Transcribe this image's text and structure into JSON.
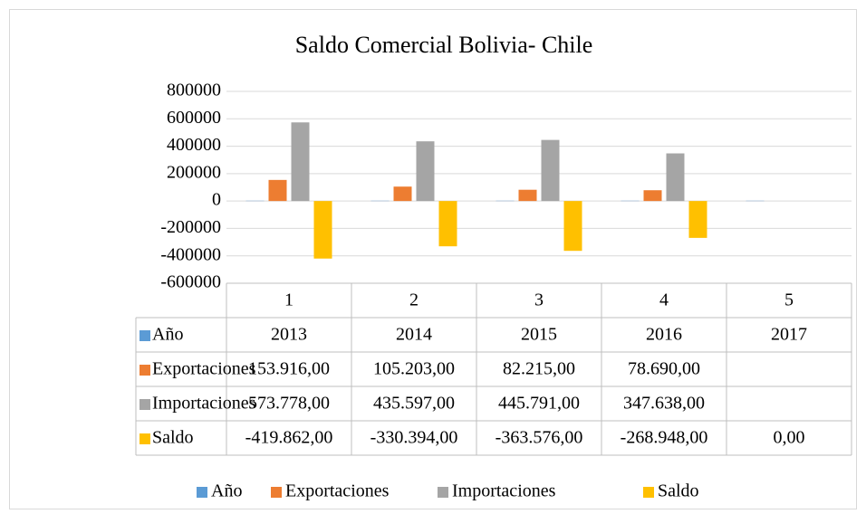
{
  "chart_data": {
    "type": "bar",
    "title": "Saldo Comercial Bolivia- Chile",
    "categories": [
      "1",
      "2",
      "3",
      "4",
      "5"
    ],
    "series": [
      {
        "name": "Año",
        "color": "#5b9bd5",
        "values": [
          2013,
          2014,
          2015,
          2016,
          2017
        ]
      },
      {
        "name": "Exportaciones",
        "color": "#ed7d31",
        "values": [
          153916,
          105203,
          82215,
          78690,
          null
        ],
        "value_labels": [
          "153.916,00",
          "105.203,00",
          "82.215,00",
          "78.690,00",
          null
        ]
      },
      {
        "name": "Importaciones",
        "color": "#a5a5a5",
        "values": [
          573778,
          435597,
          445791,
          347638,
          null
        ],
        "value_labels": [
          "573.778,00",
          "435.597,00",
          "445.791,00",
          "347.638,00",
          null
        ]
      },
      {
        "name": "Saldo",
        "color": "#ffc000",
        "values": [
          -419862,
          -330394,
          -363576,
          -268948,
          0
        ],
        "value_labels": [
          "-419.862,00",
          "-330.394,00",
          "-363.576,00",
          "-268.948,00",
          "0,00"
        ]
      }
    ],
    "ylim": [
      -600000,
      800000
    ],
    "yticks": [
      -600000,
      -400000,
      -200000,
      0,
      200000,
      400000,
      600000,
      800000
    ],
    "grid": true,
    "legend": "bottom"
  }
}
